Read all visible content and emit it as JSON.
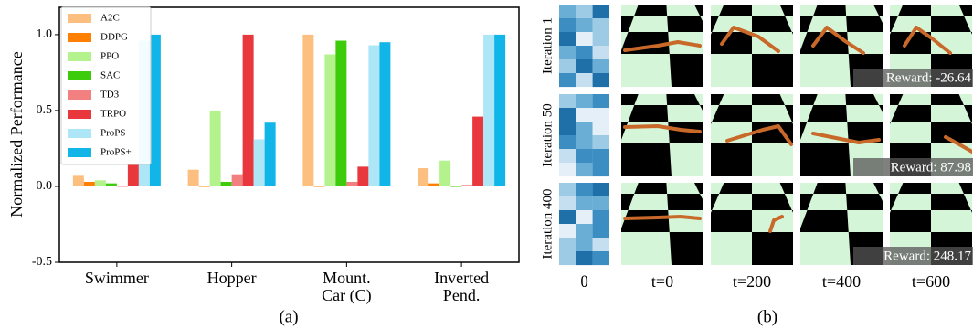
{
  "chart_data": {
    "type": "bar",
    "panel_label": "(a)",
    "y_label": "Normalized Performance",
    "categories": [
      "Swimmer",
      "Hopper",
      "Mount.\nCar (C)",
      "Inverted\nPend."
    ],
    "series": [
      {
        "name": "A2C",
        "color": "#fdbf80",
        "values": [
          0.07,
          0.11,
          1.0,
          0.12
        ]
      },
      {
        "name": "DDPG",
        "color": "#ff8000",
        "values": [
          0.03,
          0.0,
          0.0,
          0.02
        ]
      },
      {
        "name": "PPO",
        "color": "#b3f28c",
        "values": [
          0.04,
          0.5,
          0.87,
          0.17
        ]
      },
      {
        "name": "SAC",
        "color": "#3ccc0c",
        "values": [
          0.02,
          0.03,
          0.96,
          0.0
        ]
      },
      {
        "name": "TD3",
        "color": "#f28080",
        "values": [
          0.0,
          0.08,
          0.03,
          0.01
        ]
      },
      {
        "name": "TRPO",
        "color": "#e8383d",
        "values": [
          0.15,
          1.0,
          0.13,
          0.46
        ]
      },
      {
        "name": "ProPS",
        "color": "#ace6f7",
        "values": [
          0.96,
          0.31,
          0.93,
          1.0
        ]
      },
      {
        "name": "ProPS+",
        "color": "#12b5e8",
        "values": [
          1.0,
          0.42,
          0.95,
          1.0
        ]
      }
    ],
    "ylim": [
      -0.5,
      1.18
    ],
    "yticks": [
      -0.5,
      {
        "value": 0,
        "label": "0.0"
      },
      0.5,
      {
        "value": 1,
        "label": "1.0"
      }
    ],
    "legend": "upper left"
  },
  "figure_b": {
    "panel_label": "(b)",
    "rows": [
      "Iteration 1",
      "Iteration 50",
      "Iteration 400"
    ],
    "columns": [
      "θ",
      "t=0",
      "t=200",
      "t=400",
      "t=600"
    ],
    "rewards": [
      "Reward: -26.64",
      "Reward: 87.98",
      "Reward: 248.17"
    ]
  }
}
